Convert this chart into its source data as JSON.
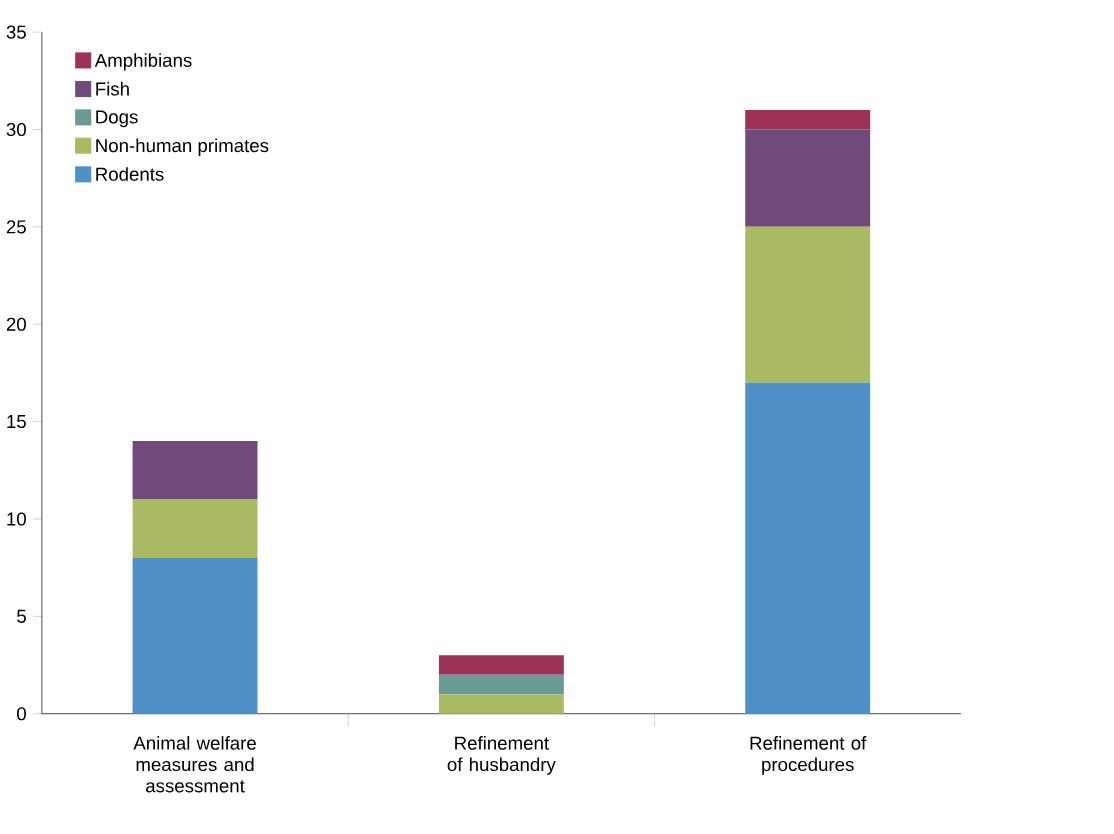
{
  "chart_data": {
    "type": "bar",
    "stacked": true,
    "categories": [
      "Animal welfare measures and assessment",
      "Refinement of husbandry",
      "Refinement of procedures"
    ],
    "series": [
      {
        "name": "Rodents",
        "color": "#4f90c9",
        "values": [
          8,
          0,
          17
        ]
      },
      {
        "name": "Non-human primates",
        "color": "#a9ba63",
        "values": [
          3,
          1,
          8
        ]
      },
      {
        "name": "Dogs",
        "color": "#6a9a94",
        "values": [
          0,
          1,
          0
        ]
      },
      {
        "name": "Fish",
        "color": "#6f4a7a",
        "values": [
          3,
          0,
          5
        ]
      },
      {
        "name": "Amphibians",
        "color": "#9e3158",
        "values": [
          0,
          1,
          1
        ]
      }
    ],
    "ylim": [
      0,
      35
    ],
    "yticks": [
      0,
      5,
      10,
      15,
      20,
      25,
      30,
      35
    ],
    "legend": "top left"
  }
}
